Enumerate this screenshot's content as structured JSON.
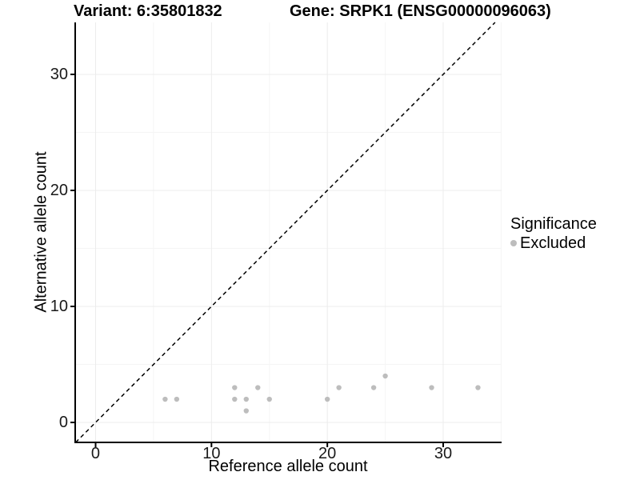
{
  "titles": {
    "variant": "Variant: 6:35801832",
    "gene": "Gene: SRPK1 (ENSG00000096063)"
  },
  "axes": {
    "x": {
      "label": "Reference allele count",
      "tick_labels": [
        "0",
        "10",
        "20",
        "30"
      ]
    },
    "y": {
      "label": "Alternative allele count",
      "tick_labels": [
        "0",
        "10",
        "20",
        "30"
      ]
    }
  },
  "legend": {
    "title": "Significance",
    "items": [
      {
        "label": "Excluded",
        "color": "#bdbdbd"
      }
    ]
  },
  "colors": {
    "point": "#bdbdbd",
    "axis_line": "#000000",
    "tick_text": "#1a1a1a",
    "grid_major": "#ececec",
    "grid_minor": "#f5f5f5",
    "identity_line": "#000000",
    "background": "#ffffff"
  },
  "chart_data": {
    "type": "scatter",
    "title": "Variant: 6:35801832 / Gene: SRPK1 (ENSG00000096063)",
    "xlabel": "Reference allele count",
    "ylabel": "Alternative allele count",
    "xlim": [
      -1.76,
      35.04
    ],
    "ylim": [
      -1.72,
      34.48
    ],
    "x_ticks": [
      0,
      10,
      20,
      30
    ],
    "y_ticks": [
      0,
      10,
      20,
      30
    ],
    "x_minor_ticks": [
      5,
      15,
      25,
      35
    ],
    "y_minor_ticks": [
      5,
      15,
      25
    ],
    "grid": true,
    "legend_position": "right",
    "identity_line": {
      "equation": "y = x",
      "style": "dashed",
      "color": "#000000"
    },
    "series": [
      {
        "name": "Excluded",
        "color": "#bdbdbd",
        "points": [
          [
            6,
            2
          ],
          [
            7,
            2
          ],
          [
            12,
            2
          ],
          [
            12,
            3
          ],
          [
            13,
            1
          ],
          [
            13,
            2
          ],
          [
            14,
            3
          ],
          [
            15,
            2
          ],
          [
            20,
            2
          ],
          [
            21,
            3
          ],
          [
            24,
            3
          ],
          [
            25,
            4
          ],
          [
            29,
            3
          ],
          [
            33,
            3
          ]
        ]
      }
    ]
  }
}
